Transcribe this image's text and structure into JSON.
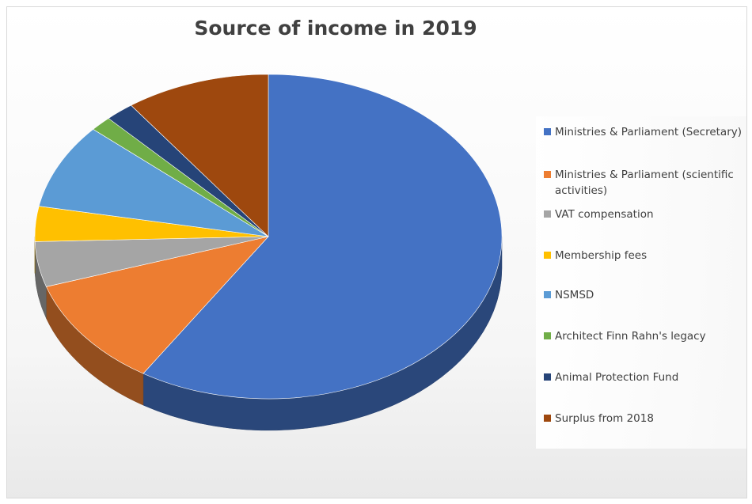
{
  "chart_data": {
    "type": "pie",
    "title": "Source of income in 2019",
    "legend_position": "right",
    "slices": [
      {
        "label": "Ministries & Parliament (Secretary)",
        "value": 59,
        "color": "#4472c4"
      },
      {
        "label": "Ministries & Parliament (scientific activities)",
        "value": 11,
        "color": "#ed7d31"
      },
      {
        "label": "VAT compensation",
        "value": 4.5,
        "color": "#a5a5a5"
      },
      {
        "label": "Membership fees",
        "value": 3.5,
        "color": "#ffc000"
      },
      {
        "label": "NSMSD",
        "value": 8.5,
        "color": "#5b9bd5"
      },
      {
        "label": "Architect Finn Rahn's legacy",
        "value": 1.5,
        "color": "#70ad47"
      },
      {
        "label": "Animal Protection Fund",
        "value": 2,
        "color": "#264478"
      },
      {
        "label": "Surplus from 2018",
        "value": 10,
        "color": "#9e480e"
      }
    ]
  }
}
